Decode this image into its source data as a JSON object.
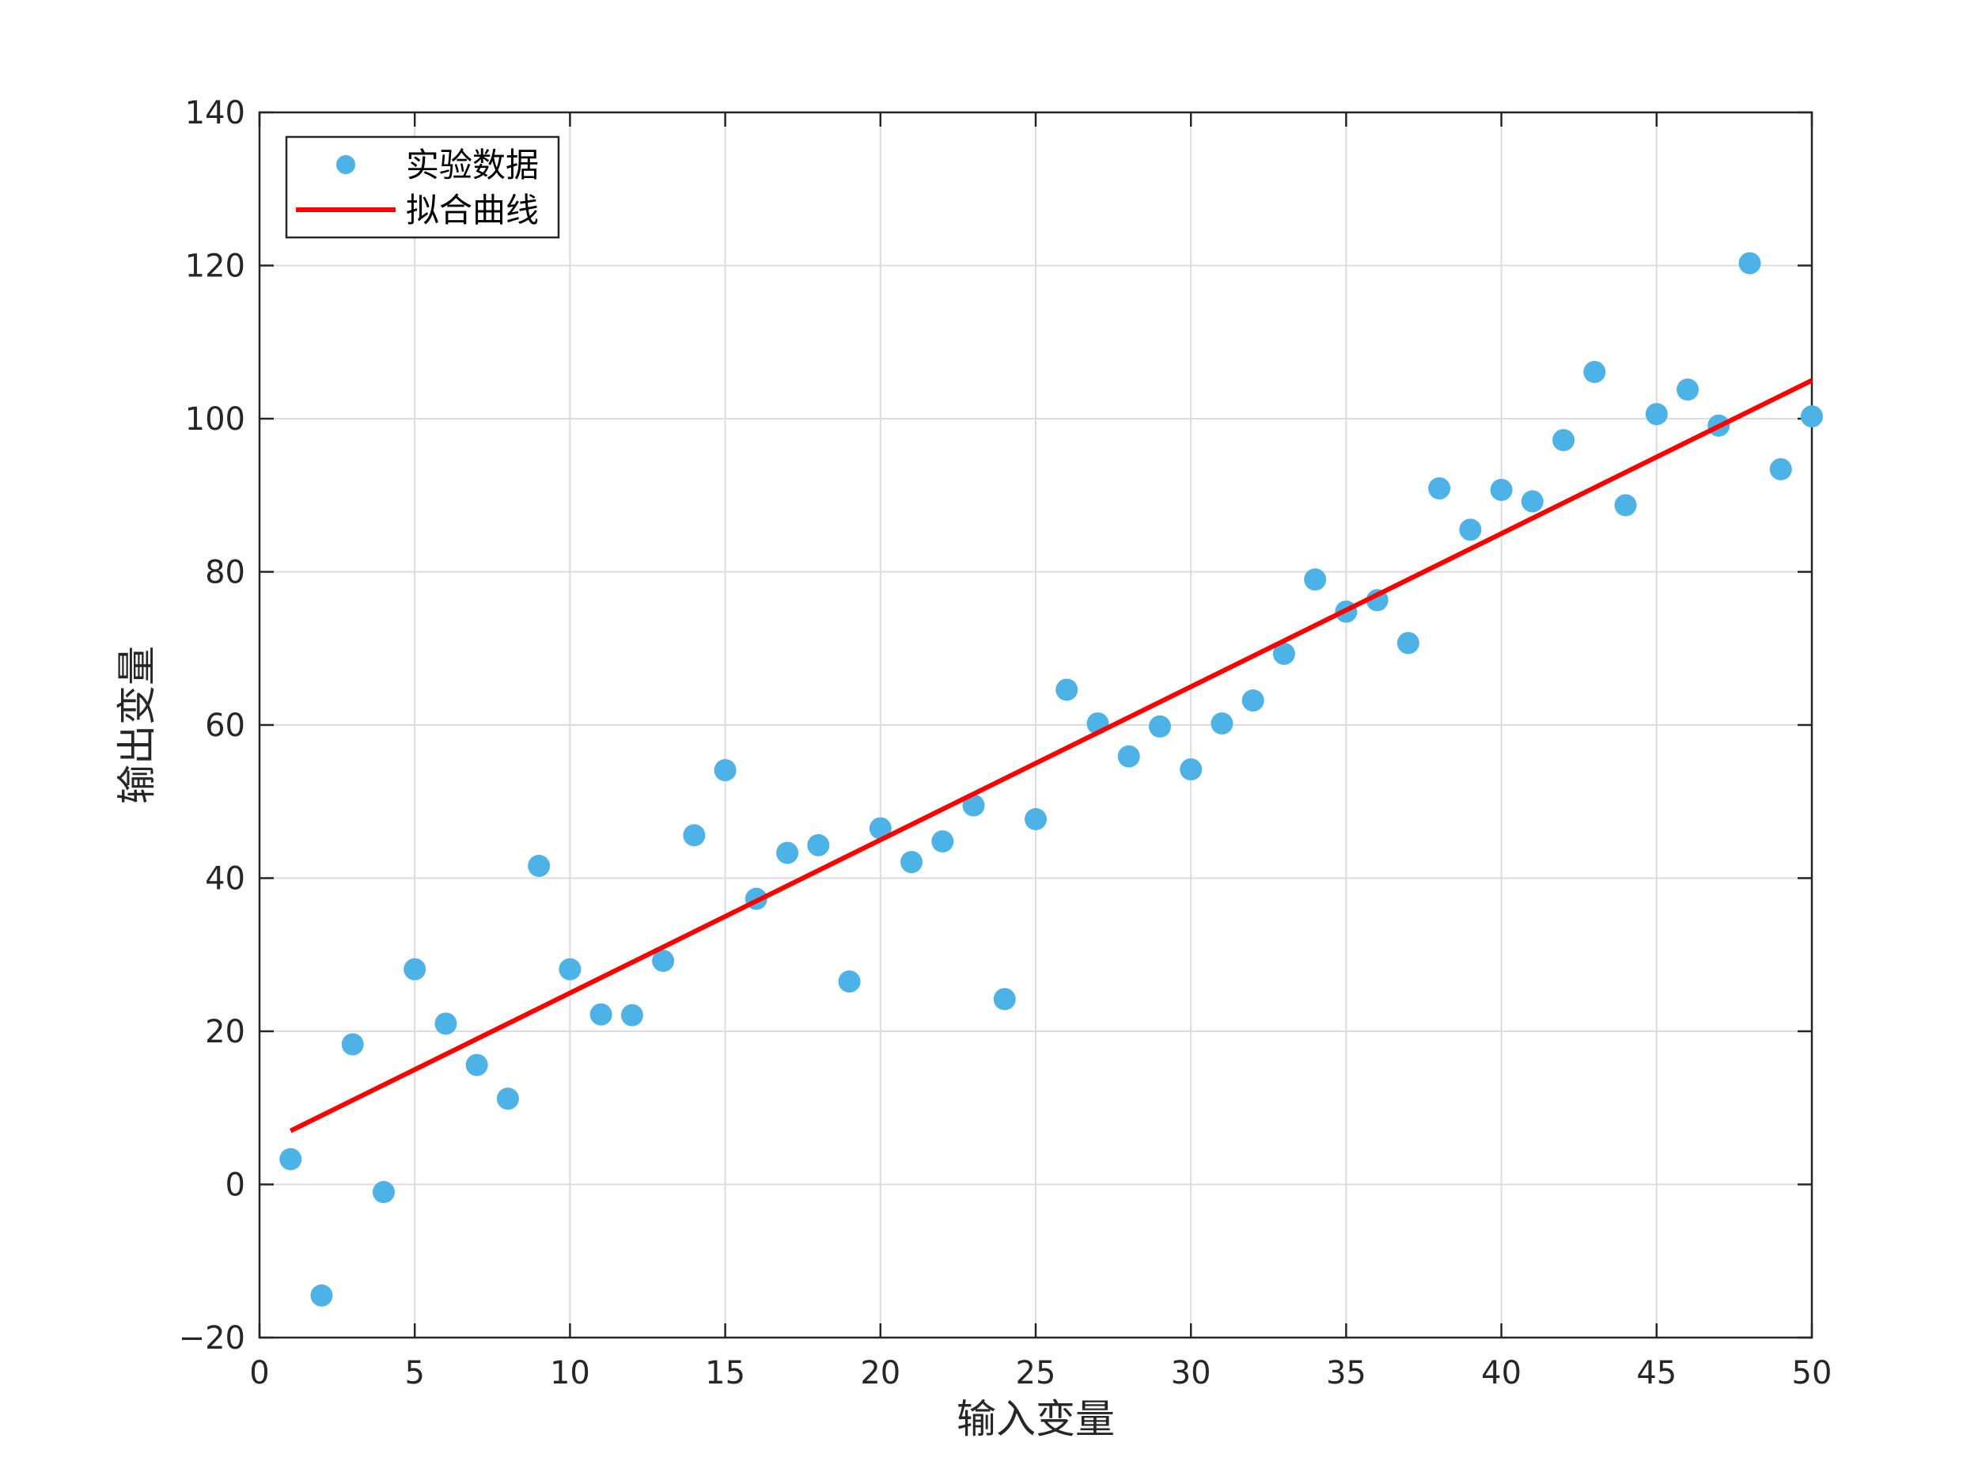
{
  "chart_data": {
    "type": "scatter",
    "title": "",
    "xlabel": "输入变量",
    "ylabel": "输出变量",
    "xlim": [
      0,
      50
    ],
    "ylim": [
      -20,
      140
    ],
    "xticks": [
      0,
      5,
      10,
      15,
      20,
      25,
      30,
      35,
      40,
      45,
      50
    ],
    "yticks": [
      -20,
      0,
      20,
      40,
      60,
      80,
      100,
      120,
      140
    ],
    "grid": true,
    "legend_position": "top-left",
    "series": [
      {
        "name": "实验数据",
        "type": "scatter",
        "color": "#4DB3E6",
        "points": [
          [
            1,
            3.3
          ],
          [
            2,
            -14.5
          ],
          [
            3,
            18.3
          ],
          [
            4,
            -1.0
          ],
          [
            5,
            28.1
          ],
          [
            6,
            21.0
          ],
          [
            7,
            15.6
          ],
          [
            8,
            11.2
          ],
          [
            9,
            41.6
          ],
          [
            10,
            28.1
          ],
          [
            11,
            22.2
          ],
          [
            12,
            22.1
          ],
          [
            13,
            29.2
          ],
          [
            14,
            45.6
          ],
          [
            15,
            54.1
          ],
          [
            16,
            37.3
          ],
          [
            17,
            43.3
          ],
          [
            18,
            44.3
          ],
          [
            19,
            26.5
          ],
          [
            20,
            46.5
          ],
          [
            21,
            42.1
          ],
          [
            22,
            44.8
          ],
          [
            23,
            49.5
          ],
          [
            24,
            24.2
          ],
          [
            25,
            47.7
          ],
          [
            26,
            64.6
          ],
          [
            27,
            60.2
          ],
          [
            28,
            55.9
          ],
          [
            29,
            59.8
          ],
          [
            30,
            54.2
          ],
          [
            31,
            60.2
          ],
          [
            32,
            63.2
          ],
          [
            33,
            69.3
          ],
          [
            34,
            79.0
          ],
          [
            35,
            74.8
          ],
          [
            36,
            76.3
          ],
          [
            37,
            70.7
          ],
          [
            38,
            90.9
          ],
          [
            39,
            85.5
          ],
          [
            40,
            90.7
          ],
          [
            41,
            89.2
          ],
          [
            42,
            97.2
          ],
          [
            43,
            106.1
          ],
          [
            44,
            88.7
          ],
          [
            45,
            100.6
          ],
          [
            46,
            103.8
          ],
          [
            47,
            99.1
          ],
          [
            48,
            120.3
          ],
          [
            49,
            93.4
          ],
          [
            50,
            100.3
          ]
        ]
      },
      {
        "name": "拟合曲线",
        "type": "line",
        "color": "#FF0000",
        "points": [
          [
            1,
            7.0
          ],
          [
            50,
            105.0
          ]
        ]
      }
    ]
  }
}
